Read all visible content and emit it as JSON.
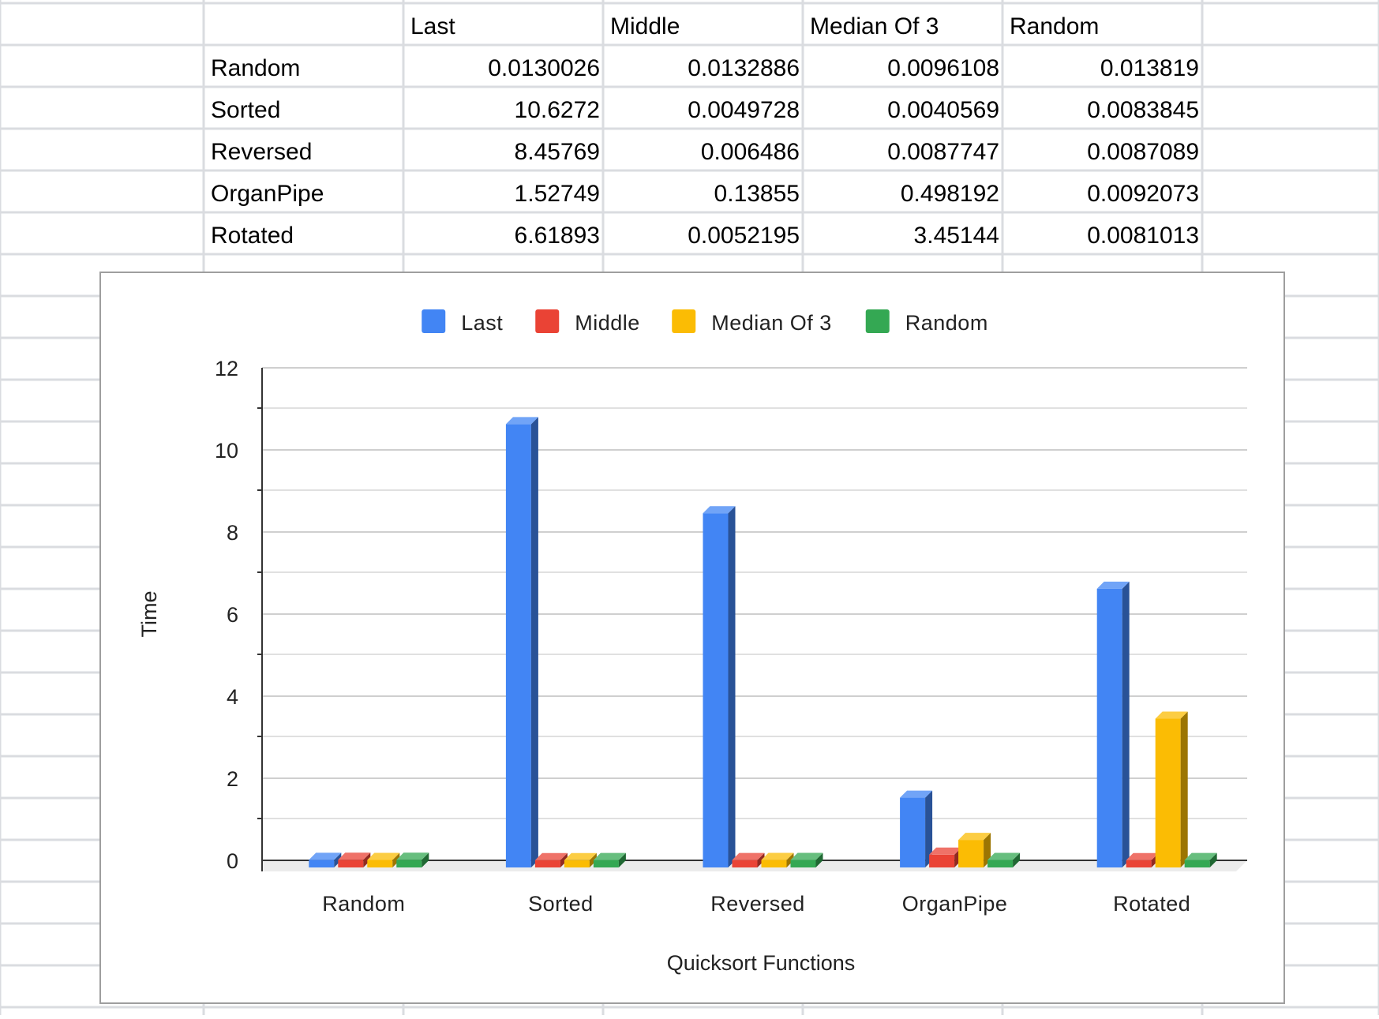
{
  "table": {
    "columns": [
      "Last",
      "Middle",
      "Median Of 3",
      "Random"
    ],
    "rows": [
      {
        "label": "Random",
        "values": [
          "0.0130026",
          "0.0132886",
          "0.0096108",
          "0.013819"
        ]
      },
      {
        "label": "Sorted",
        "values": [
          "10.6272",
          "0.0049728",
          "0.0040569",
          "0.0083845"
        ]
      },
      {
        "label": "Reversed",
        "values": [
          "8.45769",
          "0.006486",
          "0.0087747",
          "0.0087089"
        ]
      },
      {
        "label": "OrganPipe",
        "values": [
          "1.52749",
          "0.13855",
          "0.498192",
          "0.0092073"
        ]
      },
      {
        "label": "Rotated",
        "values": [
          "6.61893",
          "0.0052195",
          "3.45144",
          "0.0081013"
        ]
      }
    ]
  },
  "chart_data": {
    "type": "bar",
    "style": "3d-column",
    "title": "",
    "xlabel": "Quicksort Functions",
    "ylabel": "Time",
    "ylim": [
      0,
      12
    ],
    "yticks": [
      0,
      2,
      4,
      6,
      8,
      10,
      12
    ],
    "grid": true,
    "legend_position": "top",
    "categories": [
      "Random",
      "Sorted",
      "Reversed",
      "OrganPipe",
      "Rotated"
    ],
    "series": [
      {
        "name": "Last",
        "color": "#4285f4",
        "values": [
          0.0130026,
          10.6272,
          8.45769,
          1.52749,
          6.61893
        ]
      },
      {
        "name": "Middle",
        "color": "#ea4335",
        "values": [
          0.0132886,
          0.0049728,
          0.006486,
          0.13855,
          0.0052195
        ]
      },
      {
        "name": "Median Of 3",
        "color": "#fbbc04",
        "values": [
          0.0096108,
          0.0040569,
          0.0087747,
          0.498192,
          3.45144
        ]
      },
      {
        "name": "Random",
        "color": "#34a853",
        "values": [
          0.013819,
          0.0083845,
          0.0087089,
          0.0092073,
          0.0081013
        ]
      }
    ]
  }
}
